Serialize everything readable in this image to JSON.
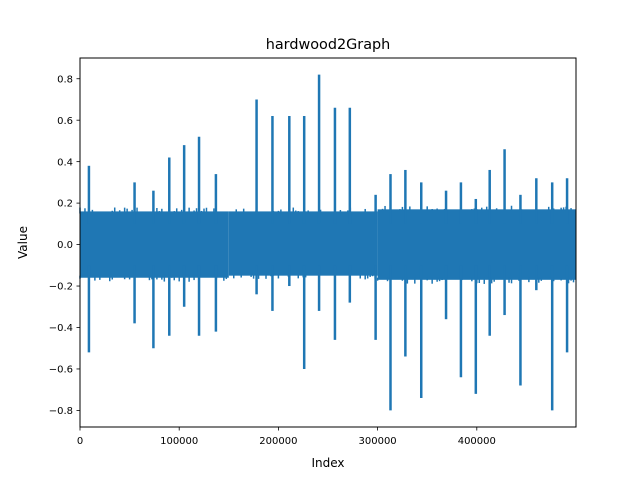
{
  "chart_data": {
    "type": "line",
    "title": "hardwood2Graph",
    "xlabel": "Index",
    "ylabel": "Value",
    "xlim": [
      0,
      500000
    ],
    "ylim": [
      -0.88,
      0.9
    ],
    "x_ticks": [
      0,
      100000,
      200000,
      300000,
      400000
    ],
    "x_tick_labels": [
      "0",
      "100000",
      "200000",
      "300000",
      "400000"
    ],
    "y_ticks": [
      -0.8,
      -0.6,
      -0.4,
      -0.2,
      0.0,
      0.2,
      0.4,
      0.6,
      0.8
    ],
    "y_tick_labels": [
      "−0.8",
      "−0.6",
      "−0.4",
      "−0.2",
      "0.0",
      "0.2",
      "0.4",
      "0.6",
      "0.8"
    ],
    "grid": false,
    "legend": "none",
    "series_color": "#1f77b4",
    "series": [
      {
        "x_range": [
          0,
          500000
        ],
        "noise_segments": [
          {
            "x": [
              0,
              150000
            ],
            "low": -0.16,
            "high": 0.16
          },
          {
            "x": [
              150000,
              300000
            ],
            "low": -0.15,
            "high": 0.16
          },
          {
            "x": [
              300000,
              500000
            ],
            "low": -0.17,
            "high": 0.17
          }
        ],
        "positive_peaks": [
          {
            "x": 9000,
            "y": 0.38
          },
          {
            "x": 55000,
            "y": 0.3
          },
          {
            "x": 74000,
            "y": 0.26
          },
          {
            "x": 90000,
            "y": 0.42
          },
          {
            "x": 105000,
            "y": 0.48
          },
          {
            "x": 120000,
            "y": 0.52
          },
          {
            "x": 137000,
            "y": 0.34
          },
          {
            "x": 178000,
            "y": 0.7
          },
          {
            "x": 194000,
            "y": 0.62
          },
          {
            "x": 211000,
            "y": 0.62
          },
          {
            "x": 226000,
            "y": 0.62
          },
          {
            "x": 241000,
            "y": 0.82
          },
          {
            "x": 257000,
            "y": 0.66
          },
          {
            "x": 272000,
            "y": 0.66
          },
          {
            "x": 298000,
            "y": 0.24
          },
          {
            "x": 313000,
            "y": 0.34
          },
          {
            "x": 328000,
            "y": 0.36
          },
          {
            "x": 344000,
            "y": 0.3
          },
          {
            "x": 369000,
            "y": 0.26
          },
          {
            "x": 384000,
            "y": 0.3
          },
          {
            "x": 399000,
            "y": 0.22
          },
          {
            "x": 413000,
            "y": 0.36
          },
          {
            "x": 428000,
            "y": 0.46
          },
          {
            "x": 444000,
            "y": 0.24
          },
          {
            "x": 460000,
            "y": 0.32
          },
          {
            "x": 476000,
            "y": 0.3
          },
          {
            "x": 491000,
            "y": 0.32
          }
        ],
        "negative_peaks": [
          {
            "x": 9000,
            "y": -0.52
          },
          {
            "x": 55000,
            "y": -0.38
          },
          {
            "x": 74000,
            "y": -0.5
          },
          {
            "x": 90000,
            "y": -0.44
          },
          {
            "x": 105000,
            "y": -0.3
          },
          {
            "x": 120000,
            "y": -0.44
          },
          {
            "x": 137000,
            "y": -0.42
          },
          {
            "x": 178000,
            "y": -0.24
          },
          {
            "x": 194000,
            "y": -0.32
          },
          {
            "x": 211000,
            "y": -0.2
          },
          {
            "x": 226000,
            "y": -0.6
          },
          {
            "x": 241000,
            "y": -0.32
          },
          {
            "x": 257000,
            "y": -0.46
          },
          {
            "x": 272000,
            "y": -0.28
          },
          {
            "x": 298000,
            "y": -0.46
          },
          {
            "x": 313000,
            "y": -0.8
          },
          {
            "x": 328000,
            "y": -0.54
          },
          {
            "x": 344000,
            "y": -0.74
          },
          {
            "x": 369000,
            "y": -0.36
          },
          {
            "x": 384000,
            "y": -0.64
          },
          {
            "x": 399000,
            "y": -0.72
          },
          {
            "x": 413000,
            "y": -0.44
          },
          {
            "x": 428000,
            "y": -0.34
          },
          {
            "x": 444000,
            "y": -0.68
          },
          {
            "x": 460000,
            "y": -0.22
          },
          {
            "x": 476000,
            "y": -0.8
          },
          {
            "x": 491000,
            "y": -0.52
          }
        ]
      }
    ]
  }
}
